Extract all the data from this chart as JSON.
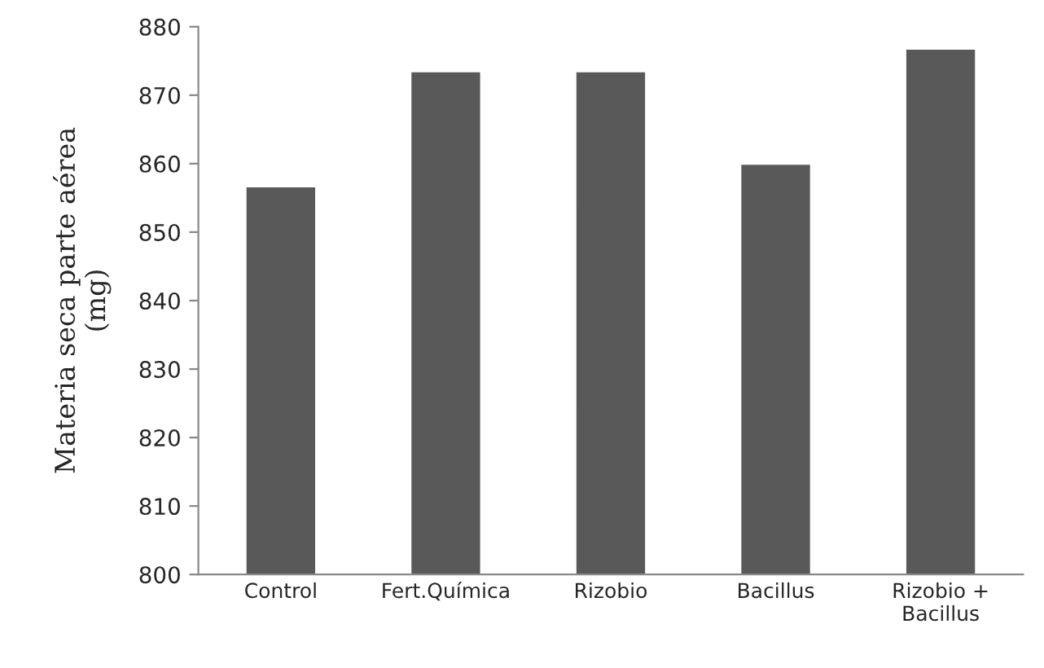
{
  "chart_data": {
    "type": "bar",
    "ylabel": "Materia seca parte aérea\n(mg)",
    "categories": [
      "Control",
      "Fert.Química",
      "Rizobio",
      "Bacillus",
      "Rizobio +\nBacillus"
    ],
    "values": [
      856.7,
      873.5,
      873.5,
      860,
      876.8
    ],
    "color": "#595959",
    "ylim": [
      800,
      880
    ],
    "yticks": [
      800,
      810,
      820,
      830,
      840,
      850,
      860,
      870,
      880
    ],
    "grid": false,
    "legend": false
  }
}
